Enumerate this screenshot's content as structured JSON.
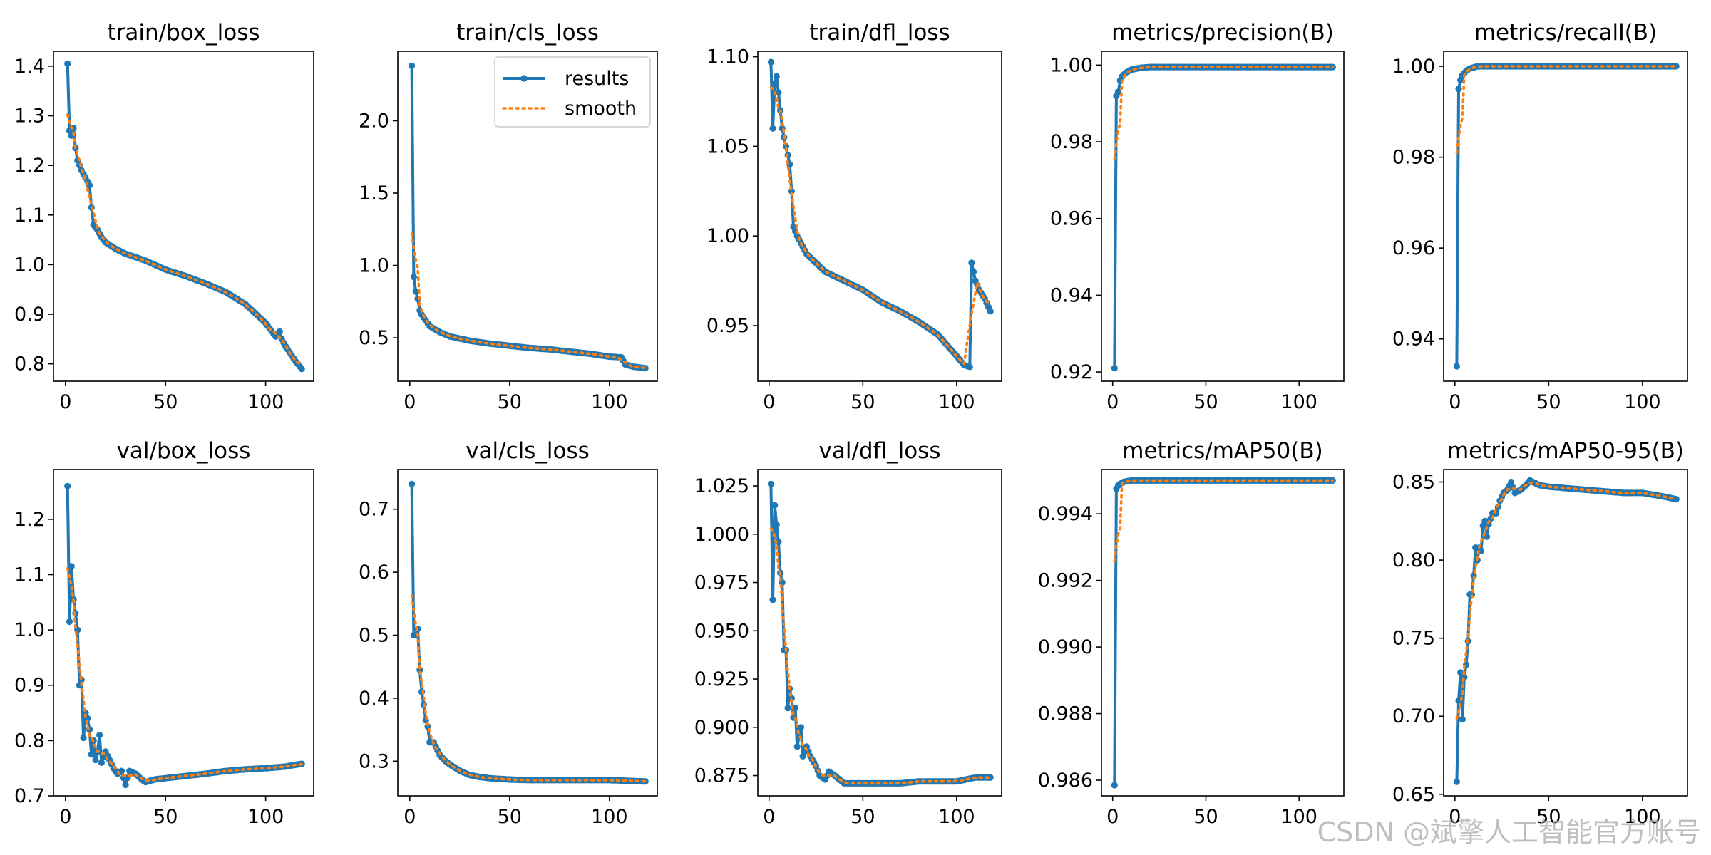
{
  "watermark": "CSDN @斌擎人工智能官方账号",
  "colors": {
    "results": "#1f77b4",
    "smooth": "#ff7f0e",
    "axis": "#000000"
  },
  "chart_data": [
    {
      "type": "line",
      "title": "train/box_loss",
      "xlabel": "",
      "ylabel": "",
      "xlim": [
        -6,
        124
      ],
      "ylim": [
        0.765,
        1.43
      ],
      "xticks": [
        0,
        50,
        100
      ],
      "yticks": [
        0.8,
        0.9,
        1.0,
        1.1,
        1.2,
        1.3,
        1.4
      ],
      "ytick_labels": [
        "0.8",
        "0.9",
        "1.0",
        "1.1",
        "1.2",
        "1.3",
        "1.4"
      ],
      "keypoints": [
        [
          1,
          1.405
        ],
        [
          2,
          1.27
        ],
        [
          3,
          1.26
        ],
        [
          4,
          1.275
        ],
        [
          5,
          1.235
        ],
        [
          6,
          1.21
        ],
        [
          8,
          1.19
        ],
        [
          10,
          1.175
        ],
        [
          12,
          1.16
        ],
        [
          13,
          1.115
        ],
        [
          14,
          1.08
        ],
        [
          16,
          1.07
        ],
        [
          18,
          1.055
        ],
        [
          20,
          1.045
        ],
        [
          25,
          1.032
        ],
        [
          30,
          1.022
        ],
        [
          40,
          1.008
        ],
        [
          50,
          0.99
        ],
        [
          60,
          0.977
        ],
        [
          70,
          0.962
        ],
        [
          80,
          0.945
        ],
        [
          90,
          0.92
        ],
        [
          100,
          0.882
        ],
        [
          105,
          0.855
        ],
        [
          107,
          0.865
        ],
        [
          108,
          0.85
        ],
        [
          110,
          0.835
        ],
        [
          115,
          0.805
        ],
        [
          118,
          0.79
        ]
      ],
      "legend": null
    },
    {
      "type": "line",
      "title": "train/cls_loss",
      "xlabel": "",
      "ylabel": "",
      "xlim": [
        -6,
        124
      ],
      "ylim": [
        0.2,
        2.48
      ],
      "xticks": [
        0,
        50,
        100
      ],
      "yticks": [
        0.5,
        1.0,
        1.5,
        2.0
      ],
      "ytick_labels": [
        "0.5",
        "1.0",
        "1.5",
        "2.0"
      ],
      "keypoints": [
        [
          1,
          2.38
        ],
        [
          2,
          0.92
        ],
        [
          3,
          0.82
        ],
        [
          4,
          0.77
        ],
        [
          5,
          0.69
        ],
        [
          6,
          0.66
        ],
        [
          8,
          0.62
        ],
        [
          10,
          0.58
        ],
        [
          15,
          0.54
        ],
        [
          20,
          0.51
        ],
        [
          30,
          0.48
        ],
        [
          40,
          0.46
        ],
        [
          50,
          0.445
        ],
        [
          60,
          0.43
        ],
        [
          70,
          0.42
        ],
        [
          80,
          0.405
        ],
        [
          90,
          0.39
        ],
        [
          100,
          0.37
        ],
        [
          106,
          0.365
        ],
        [
          108,
          0.315
        ],
        [
          112,
          0.3
        ],
        [
          118,
          0.29
        ]
      ],
      "legend": {
        "position": "upper-right",
        "entries": [
          "results",
          "smooth"
        ]
      }
    },
    {
      "type": "line",
      "title": "train/dfl_loss",
      "xlabel": "",
      "ylabel": "",
      "xlim": [
        -6,
        124
      ],
      "ylim": [
        0.919,
        1.103
      ],
      "xticks": [
        0,
        50,
        100
      ],
      "yticks": [
        0.95,
        1.0,
        1.05,
        1.1
      ],
      "ytick_labels": [
        "0.95",
        "1.00",
        "1.05",
        "1.10"
      ],
      "keypoints": [
        [
          1,
          1.097
        ],
        [
          2,
          1.06
        ],
        [
          3,
          1.085
        ],
        [
          4,
          1.089
        ],
        [
          5,
          1.08
        ],
        [
          6,
          1.07
        ],
        [
          7,
          1.06
        ],
        [
          8,
          1.055
        ],
        [
          9,
          1.05
        ],
        [
          10,
          1.045
        ],
        [
          11,
          1.04
        ],
        [
          12,
          1.025
        ],
        [
          13,
          1.005
        ],
        [
          15,
          1.0
        ],
        [
          20,
          0.99
        ],
        [
          25,
          0.985
        ],
        [
          30,
          0.98
        ],
        [
          40,
          0.975
        ],
        [
          50,
          0.97
        ],
        [
          60,
          0.963
        ],
        [
          70,
          0.958
        ],
        [
          80,
          0.952
        ],
        [
          90,
          0.945
        ],
        [
          100,
          0.933
        ],
        [
          104,
          0.928
        ],
        [
          107,
          0.927
        ],
        [
          108,
          0.985
        ],
        [
          110,
          0.975
        ],
        [
          112,
          0.97
        ],
        [
          115,
          0.965
        ],
        [
          118,
          0.958
        ]
      ],
      "legend": null
    },
    {
      "type": "line",
      "title": "metrics/precision(B)",
      "xlabel": "",
      "ylabel": "",
      "xlim": [
        -6,
        124
      ],
      "ylim": [
        0.9176,
        1.0036
      ],
      "xticks": [
        0,
        50,
        100
      ],
      "yticks": [
        0.92,
        0.94,
        0.96,
        0.98,
        1.0
      ],
      "ytick_labels": [
        "0.92",
        "0.94",
        "0.96",
        "0.98",
        "1.00"
      ],
      "keypoints": [
        [
          1,
          0.921
        ],
        [
          2,
          0.992
        ],
        [
          3,
          0.993
        ],
        [
          4,
          0.996
        ],
        [
          5,
          0.997
        ],
        [
          7,
          0.998
        ],
        [
          10,
          0.9988
        ],
        [
          15,
          0.9993
        ],
        [
          20,
          0.9995
        ],
        [
          118,
          0.9995
        ]
      ],
      "legend": null
    },
    {
      "type": "line",
      "title": "metrics/recall(B)",
      "xlabel": "",
      "ylabel": "",
      "xlim": [
        -6,
        124
      ],
      "ylim": [
        0.9307,
        1.0033
      ],
      "xticks": [
        0,
        50,
        100
      ],
      "yticks": [
        0.94,
        0.96,
        0.98,
        1.0
      ],
      "ytick_labels": [
        "0.94",
        "0.96",
        "0.98",
        "1.00"
      ],
      "keypoints": [
        [
          1,
          0.934
        ],
        [
          2,
          0.995
        ],
        [
          3,
          0.997
        ],
        [
          4,
          0.998
        ],
        [
          5,
          0.9985
        ],
        [
          6,
          0.999
        ],
        [
          8,
          0.9995
        ],
        [
          12,
          1.0
        ],
        [
          118,
          1.0
        ]
      ],
      "legend": null
    },
    {
      "type": "line",
      "title": "val/box_loss",
      "xlabel": "",
      "ylabel": "",
      "xlim": [
        -6,
        124
      ],
      "ylim": [
        0.7,
        1.29
      ],
      "xticks": [
        0,
        50,
        100
      ],
      "yticks": [
        0.7,
        0.8,
        0.9,
        1.0,
        1.1,
        1.2
      ],
      "ytick_labels": [
        "0.7",
        "0.8",
        "0.9",
        "1.0",
        "1.1",
        "1.2"
      ],
      "keypoints": [
        [
          1,
          1.26
        ],
        [
          2,
          1.015
        ],
        [
          3,
          1.115
        ],
        [
          4,
          1.055
        ],
        [
          5,
          1.03
        ],
        [
          6,
          1.0
        ],
        [
          7,
          0.9
        ],
        [
          8,
          0.91
        ],
        [
          9,
          0.805
        ],
        [
          10,
          0.85
        ],
        [
          11,
          0.84
        ],
        [
          12,
          0.82
        ],
        [
          13,
          0.775
        ],
        [
          14,
          0.8
        ],
        [
          15,
          0.765
        ],
        [
          16,
          0.78
        ],
        [
          17,
          0.81
        ],
        [
          18,
          0.76
        ],
        [
          20,
          0.78
        ],
        [
          22,
          0.765
        ],
        [
          24,
          0.75
        ],
        [
          26,
          0.74
        ],
        [
          28,
          0.745
        ],
        [
          30,
          0.72
        ],
        [
          32,
          0.745
        ],
        [
          35,
          0.74
        ],
        [
          38,
          0.73
        ],
        [
          40,
          0.725
        ],
        [
          45,
          0.73
        ],
        [
          50,
          0.732
        ],
        [
          60,
          0.736
        ],
        [
          70,
          0.74
        ],
        [
          80,
          0.745
        ],
        [
          90,
          0.748
        ],
        [
          100,
          0.75
        ],
        [
          110,
          0.753
        ],
        [
          118,
          0.758
        ]
      ],
      "legend": null
    },
    {
      "type": "line",
      "title": "val/cls_loss",
      "xlabel": "",
      "ylabel": "",
      "xlim": [
        -6,
        124
      ],
      "ylim": [
        0.245,
        0.763
      ],
      "xticks": [
        0,
        50,
        100
      ],
      "yticks": [
        0.3,
        0.4,
        0.5,
        0.6,
        0.7
      ],
      "ytick_labels": [
        "0.3",
        "0.4",
        "0.5",
        "0.6",
        "0.7"
      ],
      "keypoints": [
        [
          1,
          0.74
        ],
        [
          2,
          0.5
        ],
        [
          3,
          0.5
        ],
        [
          4,
          0.51
        ],
        [
          5,
          0.445
        ],
        [
          6,
          0.41
        ],
        [
          7,
          0.39
        ],
        [
          8,
          0.365
        ],
        [
          9,
          0.355
        ],
        [
          10,
          0.33
        ],
        [
          12,
          0.33
        ],
        [
          15,
          0.31
        ],
        [
          18,
          0.3
        ],
        [
          20,
          0.295
        ],
        [
          25,
          0.285
        ],
        [
          30,
          0.278
        ],
        [
          35,
          0.275
        ],
        [
          40,
          0.273
        ],
        [
          50,
          0.271
        ],
        [
          60,
          0.27
        ],
        [
          80,
          0.27
        ],
        [
          100,
          0.27
        ],
        [
          118,
          0.268
        ]
      ],
      "legend": null
    },
    {
      "type": "line",
      "title": "val/dfl_loss",
      "xlabel": "",
      "ylabel": "",
      "xlim": [
        -6,
        124
      ],
      "ylim": [
        0.8645,
        1.0335
      ],
      "xticks": [
        0,
        50,
        100
      ],
      "yticks": [
        0.875,
        0.9,
        0.925,
        0.95,
        0.975,
        1.0,
        1.025
      ],
      "ytick_labels": [
        "0.875",
        "0.900",
        "0.925",
        "0.950",
        "0.975",
        "1.000",
        "1.025"
      ],
      "keypoints": [
        [
          1,
          1.026
        ],
        [
          2,
          0.966
        ],
        [
          3,
          1.015
        ],
        [
          4,
          1.005
        ],
        [
          5,
          0.996
        ],
        [
          6,
          0.98
        ],
        [
          7,
          0.975
        ],
        [
          8,
          0.94
        ],
        [
          9,
          0.94
        ],
        [
          10,
          0.91
        ],
        [
          11,
          0.92
        ],
        [
          12,
          0.915
        ],
        [
          13,
          0.905
        ],
        [
          14,
          0.91
        ],
        [
          15,
          0.89
        ],
        [
          16,
          0.895
        ],
        [
          17,
          0.9
        ],
        [
          18,
          0.885
        ],
        [
          20,
          0.89
        ],
        [
          22,
          0.885
        ],
        [
          25,
          0.88
        ],
        [
          27,
          0.875
        ],
        [
          30,
          0.873
        ],
        [
          32,
          0.877
        ],
        [
          35,
          0.875
        ],
        [
          40,
          0.871
        ],
        [
          50,
          0.871
        ],
        [
          60,
          0.871
        ],
        [
          70,
          0.871
        ],
        [
          80,
          0.872
        ],
        [
          90,
          0.872
        ],
        [
          100,
          0.872
        ],
        [
          110,
          0.874
        ],
        [
          118,
          0.874
        ]
      ],
      "legend": null
    },
    {
      "type": "line",
      "title": "metrics/mAP50(B)",
      "xlabel": "",
      "ylabel": "",
      "xlim": [
        -6,
        124
      ],
      "ylim": [
        0.98553,
        0.99533
      ],
      "xticks": [
        0,
        50,
        100
      ],
      "yticks": [
        0.986,
        0.988,
        0.99,
        0.992,
        0.994
      ],
      "ytick_labels": [
        "0.986",
        "0.988",
        "0.990",
        "0.992",
        "0.994"
      ],
      "keypoints": [
        [
          1,
          0.98585
        ],
        [
          2,
          0.99475
        ],
        [
          3,
          0.99485
        ],
        [
          4,
          0.9949
        ],
        [
          5,
          0.99493
        ],
        [
          6,
          0.99496
        ],
        [
          10,
          0.995
        ],
        [
          118,
          0.995
        ]
      ],
      "legend": null
    },
    {
      "type": "line",
      "title": "metrics/mAP50-95(B)",
      "xlabel": "",
      "ylabel": "",
      "xlim": [
        -6,
        124
      ],
      "ylim": [
        0.649,
        0.858
      ],
      "xticks": [
        0,
        50,
        100
      ],
      "yticks": [
        0.65,
        0.7,
        0.75,
        0.8,
        0.85
      ],
      "ytick_labels": [
        "0.65",
        "0.70",
        "0.75",
        "0.80",
        "0.85"
      ],
      "keypoints": [
        [
          1,
          0.658
        ],
        [
          2,
          0.71
        ],
        [
          3,
          0.728
        ],
        [
          4,
          0.698
        ],
        [
          5,
          0.725
        ],
        [
          6,
          0.733
        ],
        [
          7,
          0.748
        ],
        [
          8,
          0.778
        ],
        [
          9,
          0.778
        ],
        [
          10,
          0.79
        ],
        [
          11,
          0.808
        ],
        [
          12,
          0.8
        ],
        [
          13,
          0.808
        ],
        [
          14,
          0.806
        ],
        [
          15,
          0.822
        ],
        [
          16,
          0.825
        ],
        [
          17,
          0.815
        ],
        [
          18,
          0.823
        ],
        [
          20,
          0.83
        ],
        [
          22,
          0.83
        ],
        [
          24,
          0.838
        ],
        [
          26,
          0.843
        ],
        [
          28,
          0.845
        ],
        [
          30,
          0.85
        ],
        [
          32,
          0.843
        ],
        [
          35,
          0.845
        ],
        [
          38,
          0.848
        ],
        [
          40,
          0.851
        ],
        [
          45,
          0.848
        ],
        [
          50,
          0.847
        ],
        [
          60,
          0.846
        ],
        [
          70,
          0.845
        ],
        [
          80,
          0.844
        ],
        [
          90,
          0.843
        ],
        [
          100,
          0.843
        ],
        [
          110,
          0.841
        ],
        [
          118,
          0.839
        ]
      ],
      "legend": null
    }
  ]
}
